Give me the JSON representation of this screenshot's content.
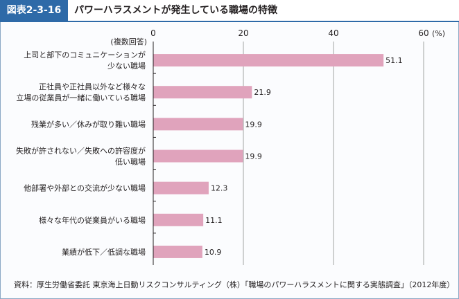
{
  "figure": {
    "tag": "図表2-3-16",
    "title": "パワーハラスメントが発生している職場の特徴"
  },
  "source": "資料：厚生労働省委託 東京海上日動リスクコンサルティング（株）「職場のパワーハラスメントに関する実態調査」（2012年度）",
  "chart_data": {
    "type": "bar",
    "orientation": "horizontal",
    "category_header": "(複数回答)",
    "unit_label": "(%)",
    "xlim": [
      0,
      60
    ],
    "ticks": [
      0,
      20,
      40,
      60
    ],
    "gridlines": true,
    "bar_color": "#e0a3bc",
    "categories": [
      [
        "上司と部下のコミュニケーションが",
        "少ない職場"
      ],
      [
        "正社員や正社員以外など様々な",
        "立場の従業員が一緒に働いている職場"
      ],
      [
        "残業が多い／休みが取り難い職場"
      ],
      [
        "失敗が許されない／失敗への許容度が",
        "低い職場"
      ],
      [
        "他部署や外部との交流が少ない職場"
      ],
      [
        "様々な年代の従業員がいる職場"
      ],
      [
        "業績が低下／低調な職場"
      ]
    ],
    "values": [
      51.1,
      21.9,
      19.9,
      19.9,
      12.3,
      11.1,
      10.9
    ],
    "value_labels": [
      "51.1",
      "21.9",
      "19.9",
      "19.9",
      "12.3",
      "11.1",
      "10.9"
    ]
  }
}
